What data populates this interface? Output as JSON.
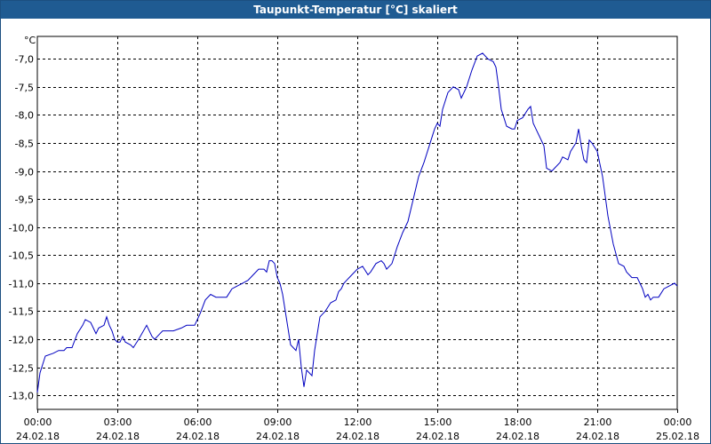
{
  "window": {
    "title": "Taupunkt-Temperatur [°C] skaliert"
  },
  "chart_data": {
    "type": "line",
    "title": "Taupunkt-Temperatur [°C] skaliert",
    "ylabel": "°C",
    "xlabel": "",
    "ylim": [
      -13.25,
      -6.6
    ],
    "xlim": [
      0,
      24
    ],
    "grid": true,
    "line_color": "#0000c0",
    "y_ticks": [
      {
        "value": -7.0,
        "label": "-7,0"
      },
      {
        "value": -7.5,
        "label": "-7,5"
      },
      {
        "value": -8.0,
        "label": "-8,0"
      },
      {
        "value": -8.5,
        "label": "-8,5"
      },
      {
        "value": -9.0,
        "label": "-9,0"
      },
      {
        "value": -9.5,
        "label": "-9,5"
      },
      {
        "value": -10.0,
        "label": "-10,0"
      },
      {
        "value": -10.5,
        "label": "-10,5"
      },
      {
        "value": -11.0,
        "label": "-11,0"
      },
      {
        "value": -11.5,
        "label": "-11,5"
      },
      {
        "value": -12.0,
        "label": "-12,0"
      },
      {
        "value": -12.5,
        "label": "-12,5"
      },
      {
        "value": -13.0,
        "label": "-13,0"
      }
    ],
    "x_ticks": [
      {
        "value": 0,
        "time": "00:00",
        "date": "24.02.18"
      },
      {
        "value": 3,
        "time": "03:00",
        "date": "24.02.18"
      },
      {
        "value": 6,
        "time": "06:00",
        "date": "24.02.18"
      },
      {
        "value": 9,
        "time": "09:00",
        "date": "24.02.18"
      },
      {
        "value": 12,
        "time": "12:00",
        "date": "24.02.18"
      },
      {
        "value": 15,
        "time": "15:00",
        "date": "24.02.18"
      },
      {
        "value": 18,
        "time": "18:00",
        "date": "24.02.18"
      },
      {
        "value": 21,
        "time": "21:00",
        "date": "24.02.18"
      },
      {
        "value": 24,
        "time": "00:00",
        "date": "25.02.18"
      }
    ],
    "series": [
      {
        "values": [
          [
            0.0,
            -12.95
          ],
          [
            0.1,
            -12.6
          ],
          [
            0.3,
            -12.3
          ],
          [
            0.6,
            -12.25
          ],
          [
            0.8,
            -12.2
          ],
          [
            1.0,
            -12.2
          ],
          [
            1.1,
            -12.15
          ],
          [
            1.3,
            -12.15
          ],
          [
            1.5,
            -11.9
          ],
          [
            1.7,
            -11.75
          ],
          [
            1.8,
            -11.65
          ],
          [
            2.0,
            -11.7
          ],
          [
            2.1,
            -11.8
          ],
          [
            2.2,
            -11.9
          ],
          [
            2.3,
            -11.8
          ],
          [
            2.5,
            -11.75
          ],
          [
            2.6,
            -11.6
          ],
          [
            2.7,
            -11.75
          ],
          [
            2.8,
            -11.85
          ],
          [
            2.9,
            -12.0
          ],
          [
            3.0,
            -12.05
          ],
          [
            3.1,
            -12.05
          ],
          [
            3.2,
            -11.95
          ],
          [
            3.3,
            -12.05
          ],
          [
            3.5,
            -12.1
          ],
          [
            3.6,
            -12.15
          ],
          [
            3.8,
            -12.0
          ],
          [
            4.1,
            -11.75
          ],
          [
            4.3,
            -11.95
          ],
          [
            4.4,
            -12.0
          ],
          [
            4.6,
            -11.9
          ],
          [
            4.7,
            -11.85
          ],
          [
            4.9,
            -11.85
          ],
          [
            5.1,
            -11.85
          ],
          [
            5.4,
            -11.8
          ],
          [
            5.6,
            -11.75
          ],
          [
            5.9,
            -11.75
          ],
          [
            6.0,
            -11.65
          ],
          [
            6.1,
            -11.55
          ],
          [
            6.3,
            -11.3
          ],
          [
            6.5,
            -11.2
          ],
          [
            6.7,
            -11.25
          ],
          [
            6.9,
            -11.25
          ],
          [
            7.1,
            -11.25
          ],
          [
            7.3,
            -11.1
          ],
          [
            7.5,
            -11.05
          ],
          [
            7.7,
            -11.0
          ],
          [
            7.9,
            -10.95
          ],
          [
            8.1,
            -10.85
          ],
          [
            8.3,
            -10.75
          ],
          [
            8.5,
            -10.75
          ],
          [
            8.6,
            -10.8
          ],
          [
            8.7,
            -10.6
          ],
          [
            8.8,
            -10.6
          ],
          [
            8.9,
            -10.65
          ],
          [
            9.0,
            -10.9
          ],
          [
            9.1,
            -11.0
          ],
          [
            9.2,
            -11.2
          ],
          [
            9.4,
            -11.8
          ],
          [
            9.5,
            -12.1
          ],
          [
            9.7,
            -12.2
          ],
          [
            9.8,
            -12.0
          ],
          [
            9.9,
            -12.5
          ],
          [
            10.0,
            -12.85
          ],
          [
            10.1,
            -12.55
          ],
          [
            10.2,
            -12.6
          ],
          [
            10.3,
            -12.65
          ],
          [
            10.4,
            -12.2
          ],
          [
            10.6,
            -11.6
          ],
          [
            10.8,
            -11.5
          ],
          [
            11.0,
            -11.35
          ],
          [
            11.2,
            -11.3
          ],
          [
            11.3,
            -11.15
          ],
          [
            11.4,
            -11.1
          ],
          [
            11.5,
            -11.0
          ],
          [
            11.6,
            -10.95
          ],
          [
            11.8,
            -10.85
          ],
          [
            12.0,
            -10.75
          ],
          [
            12.2,
            -10.7
          ],
          [
            12.4,
            -10.85
          ],
          [
            12.5,
            -10.8
          ],
          [
            12.7,
            -10.65
          ],
          [
            12.9,
            -10.6
          ],
          [
            13.0,
            -10.65
          ],
          [
            13.1,
            -10.75
          ],
          [
            13.3,
            -10.65
          ],
          [
            13.5,
            -10.35
          ],
          [
            13.7,
            -10.1
          ],
          [
            13.9,
            -9.9
          ],
          [
            14.1,
            -9.5
          ],
          [
            14.3,
            -9.1
          ],
          [
            14.5,
            -8.85
          ],
          [
            14.7,
            -8.55
          ],
          [
            14.9,
            -8.25
          ],
          [
            15.0,
            -8.15
          ],
          [
            15.1,
            -8.2
          ],
          [
            15.2,
            -7.9
          ],
          [
            15.4,
            -7.6
          ],
          [
            15.6,
            -7.5
          ],
          [
            15.8,
            -7.55
          ],
          [
            15.9,
            -7.7
          ],
          [
            16.1,
            -7.5
          ],
          [
            16.3,
            -7.2
          ],
          [
            16.5,
            -6.95
          ],
          [
            16.7,
            -6.9
          ],
          [
            16.9,
            -7.0
          ],
          [
            17.1,
            -7.05
          ],
          [
            17.2,
            -7.15
          ],
          [
            17.3,
            -7.5
          ],
          [
            17.4,
            -7.9
          ],
          [
            17.5,
            -8.05
          ],
          [
            17.6,
            -8.2
          ],
          [
            17.8,
            -8.25
          ],
          [
            17.9,
            -8.25
          ],
          [
            18.0,
            -8.1
          ],
          [
            18.2,
            -8.05
          ],
          [
            18.4,
            -7.9
          ],
          [
            18.5,
            -7.85
          ],
          [
            18.6,
            -8.15
          ],
          [
            18.7,
            -8.25
          ],
          [
            18.8,
            -8.35
          ],
          [
            19.0,
            -8.55
          ],
          [
            19.1,
            -8.95
          ],
          [
            19.3,
            -9.0
          ],
          [
            19.4,
            -8.95
          ],
          [
            19.6,
            -8.85
          ],
          [
            19.7,
            -8.75
          ],
          [
            19.9,
            -8.8
          ],
          [
            20.0,
            -8.65
          ],
          [
            20.2,
            -8.5
          ],
          [
            20.3,
            -8.25
          ],
          [
            20.4,
            -8.55
          ],
          [
            20.5,
            -8.8
          ],
          [
            20.6,
            -8.85
          ],
          [
            20.7,
            -8.45
          ],
          [
            20.8,
            -8.5
          ],
          [
            21.0,
            -8.65
          ],
          [
            21.2,
            -9.1
          ],
          [
            21.4,
            -9.8
          ],
          [
            21.6,
            -10.3
          ],
          [
            21.8,
            -10.65
          ],
          [
            22.0,
            -10.7
          ],
          [
            22.1,
            -10.8
          ],
          [
            22.3,
            -10.9
          ],
          [
            22.5,
            -10.9
          ],
          [
            22.6,
            -11.0
          ],
          [
            22.7,
            -11.1
          ],
          [
            22.8,
            -11.25
          ],
          [
            22.9,
            -11.2
          ],
          [
            23.0,
            -11.3
          ],
          [
            23.1,
            -11.25
          ],
          [
            23.3,
            -11.25
          ],
          [
            23.5,
            -11.1
          ],
          [
            23.7,
            -11.05
          ],
          [
            23.9,
            -11.0
          ],
          [
            24.0,
            -11.05
          ]
        ]
      }
    ]
  }
}
